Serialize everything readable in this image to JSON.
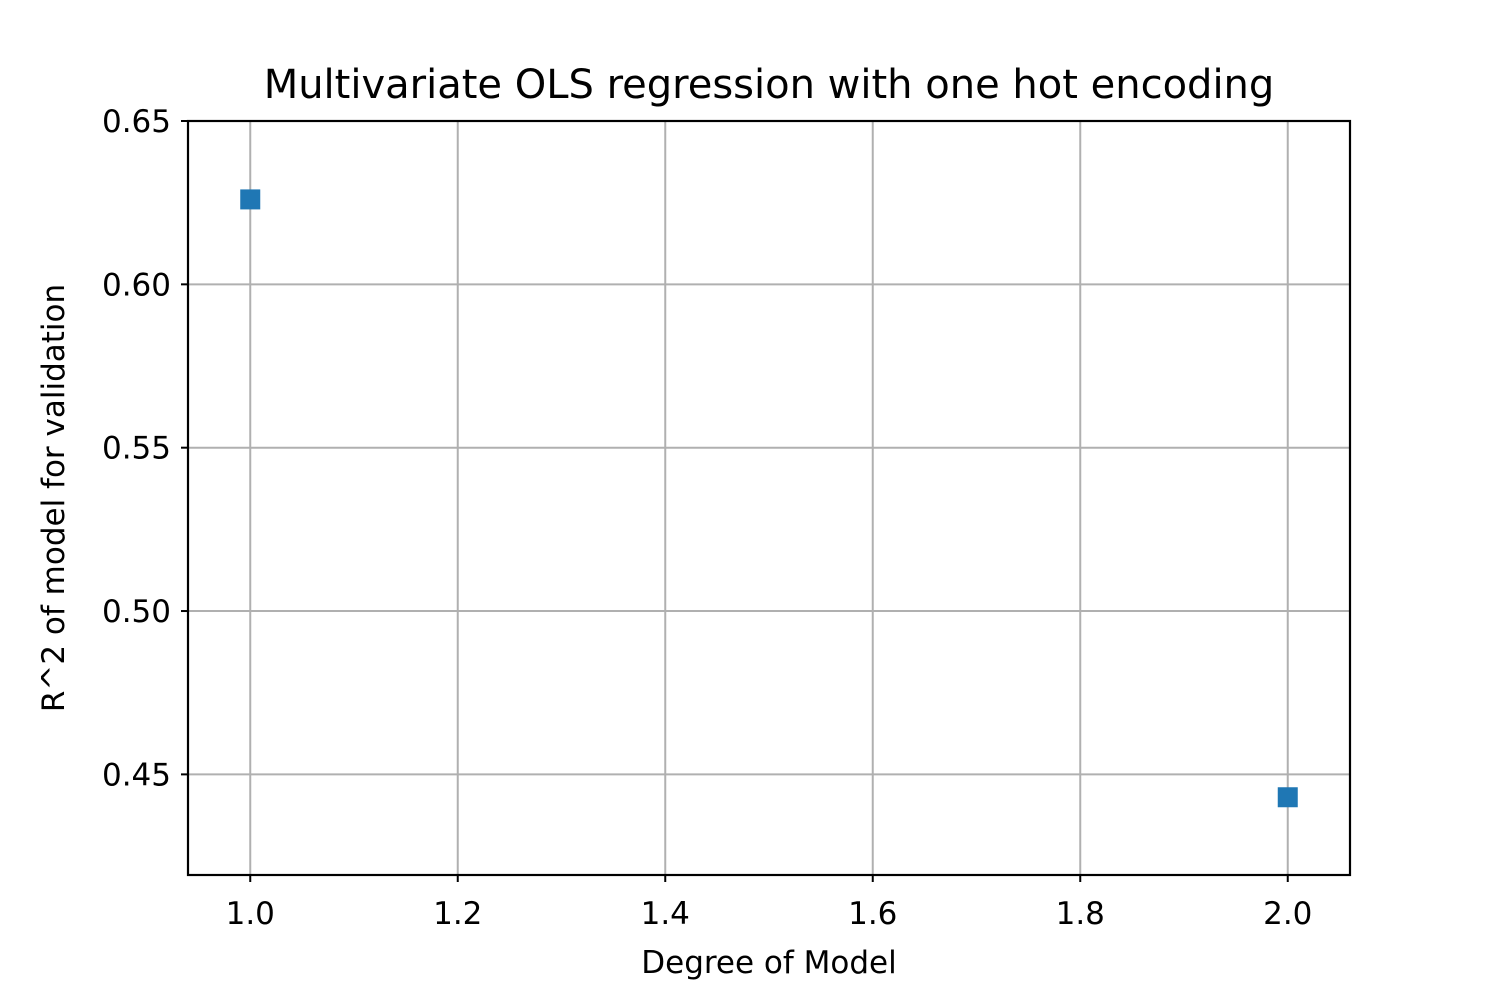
{
  "chart_data": {
    "type": "scatter",
    "title": "Multivariate OLS regression with one hot encoding",
    "xlabel": "Degree of Model",
    "ylabel": "R^2 of model for validation",
    "xlim": [
      0.94,
      2.06
    ],
    "ylim": [
      0.4192,
      0.65
    ],
    "x_ticks": [
      1.0,
      1.2,
      1.4,
      1.6,
      1.8,
      2.0
    ],
    "x_tick_labels": [
      "1.0",
      "1.2",
      "1.4",
      "1.6",
      "1.8",
      "2.0"
    ],
    "y_ticks": [
      0.45,
      0.5,
      0.55,
      0.6,
      0.65
    ],
    "y_tick_labels": [
      "0.45",
      "0.50",
      "0.55",
      "0.60",
      "0.65"
    ],
    "grid": true,
    "marker": "square",
    "color": "#1f77b4",
    "series": [
      {
        "x": [
          1.0,
          2.0
        ],
        "y": [
          0.626,
          0.443
        ]
      }
    ]
  }
}
